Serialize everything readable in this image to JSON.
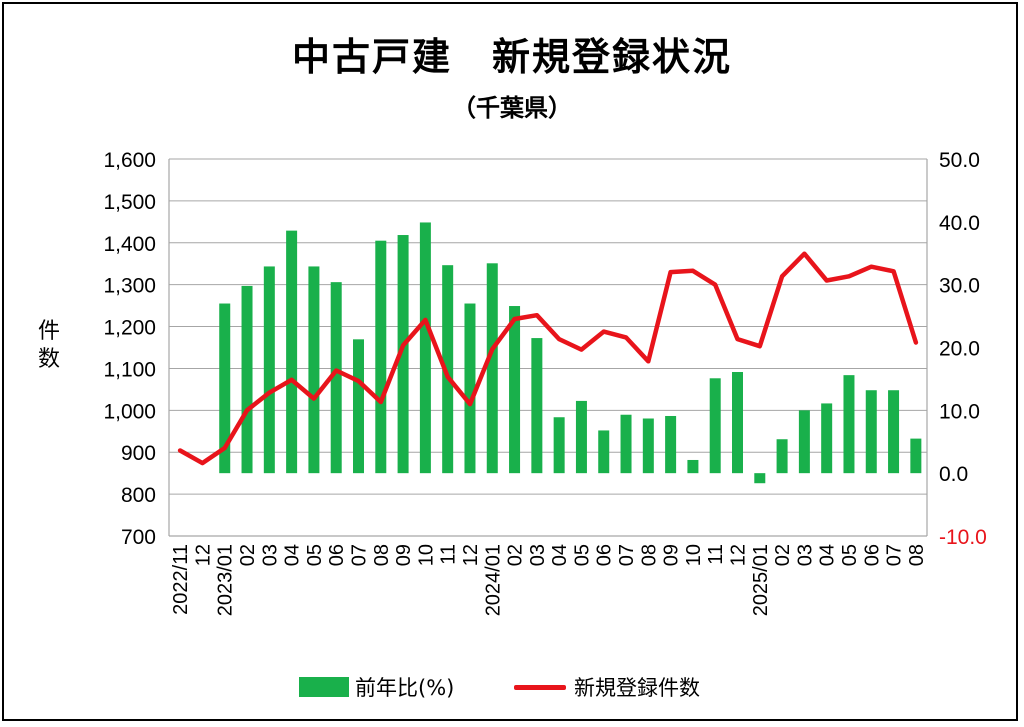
{
  "title": "中古戸建　新規登録状況",
  "subtitle": "（千葉県）",
  "y_left_label": "件数",
  "colors": {
    "bar": "#19b04b",
    "line": "#e8141b",
    "axis": "#000000",
    "grid": "#a6a6a6",
    "negative_tick": "#e8141b"
  },
  "legend": {
    "bar_label": "前年比(%)",
    "line_label": "新規登録件数"
  },
  "chart_data": {
    "type": "bar",
    "title": "中古戸建　新規登録状況",
    "subtitle": "（千葉県）",
    "categories": [
      "2022/11",
      "12",
      "2023/01",
      "02",
      "03",
      "04",
      "05",
      "06",
      "07",
      "08",
      "09",
      "10",
      "11",
      "12",
      "2024/01",
      "02",
      "03",
      "04",
      "05",
      "06",
      "07",
      "08",
      "09",
      "10",
      "11",
      "12",
      "2025/01",
      "02",
      "03",
      "04",
      "05",
      "06",
      "07",
      "08"
    ],
    "series": [
      {
        "name": "前年比(%)",
        "type": "bar",
        "axis": "right",
        "values": [
          null,
          null,
          27.0,
          29.8,
          32.9,
          38.6,
          32.9,
          30.4,
          21.3,
          37.0,
          37.9,
          39.9,
          33.1,
          27.0,
          33.4,
          26.6,
          21.5,
          8.9,
          11.5,
          6.8,
          9.3,
          8.7,
          9.1,
          2.1,
          15.1,
          16.1,
          -1.6,
          5.4,
          10.0,
          11.1,
          15.6,
          13.2,
          13.2,
          5.5
        ]
      },
      {
        "name": "新規登録件数",
        "type": "line",
        "axis": "left",
        "values": [
          904,
          874,
          910,
          1000,
          1042,
          1073,
          1028,
          1095,
          1070,
          1020,
          1155,
          1216,
          1080,
          1015,
          1146,
          1218,
          1227,
          1170,
          1145,
          1188,
          1174,
          1117,
          1330,
          1333,
          1300,
          1170,
          1153,
          1320,
          1374,
          1310,
          1320,
          1343,
          1332,
          1162
        ]
      }
    ],
    "y_left": {
      "min": 700,
      "max": 1600,
      "step": 100,
      "label": "件数"
    },
    "y_right": {
      "min": -10,
      "max": 50,
      "step": 10
    },
    "grid": true,
    "legend_position": "bottom"
  }
}
